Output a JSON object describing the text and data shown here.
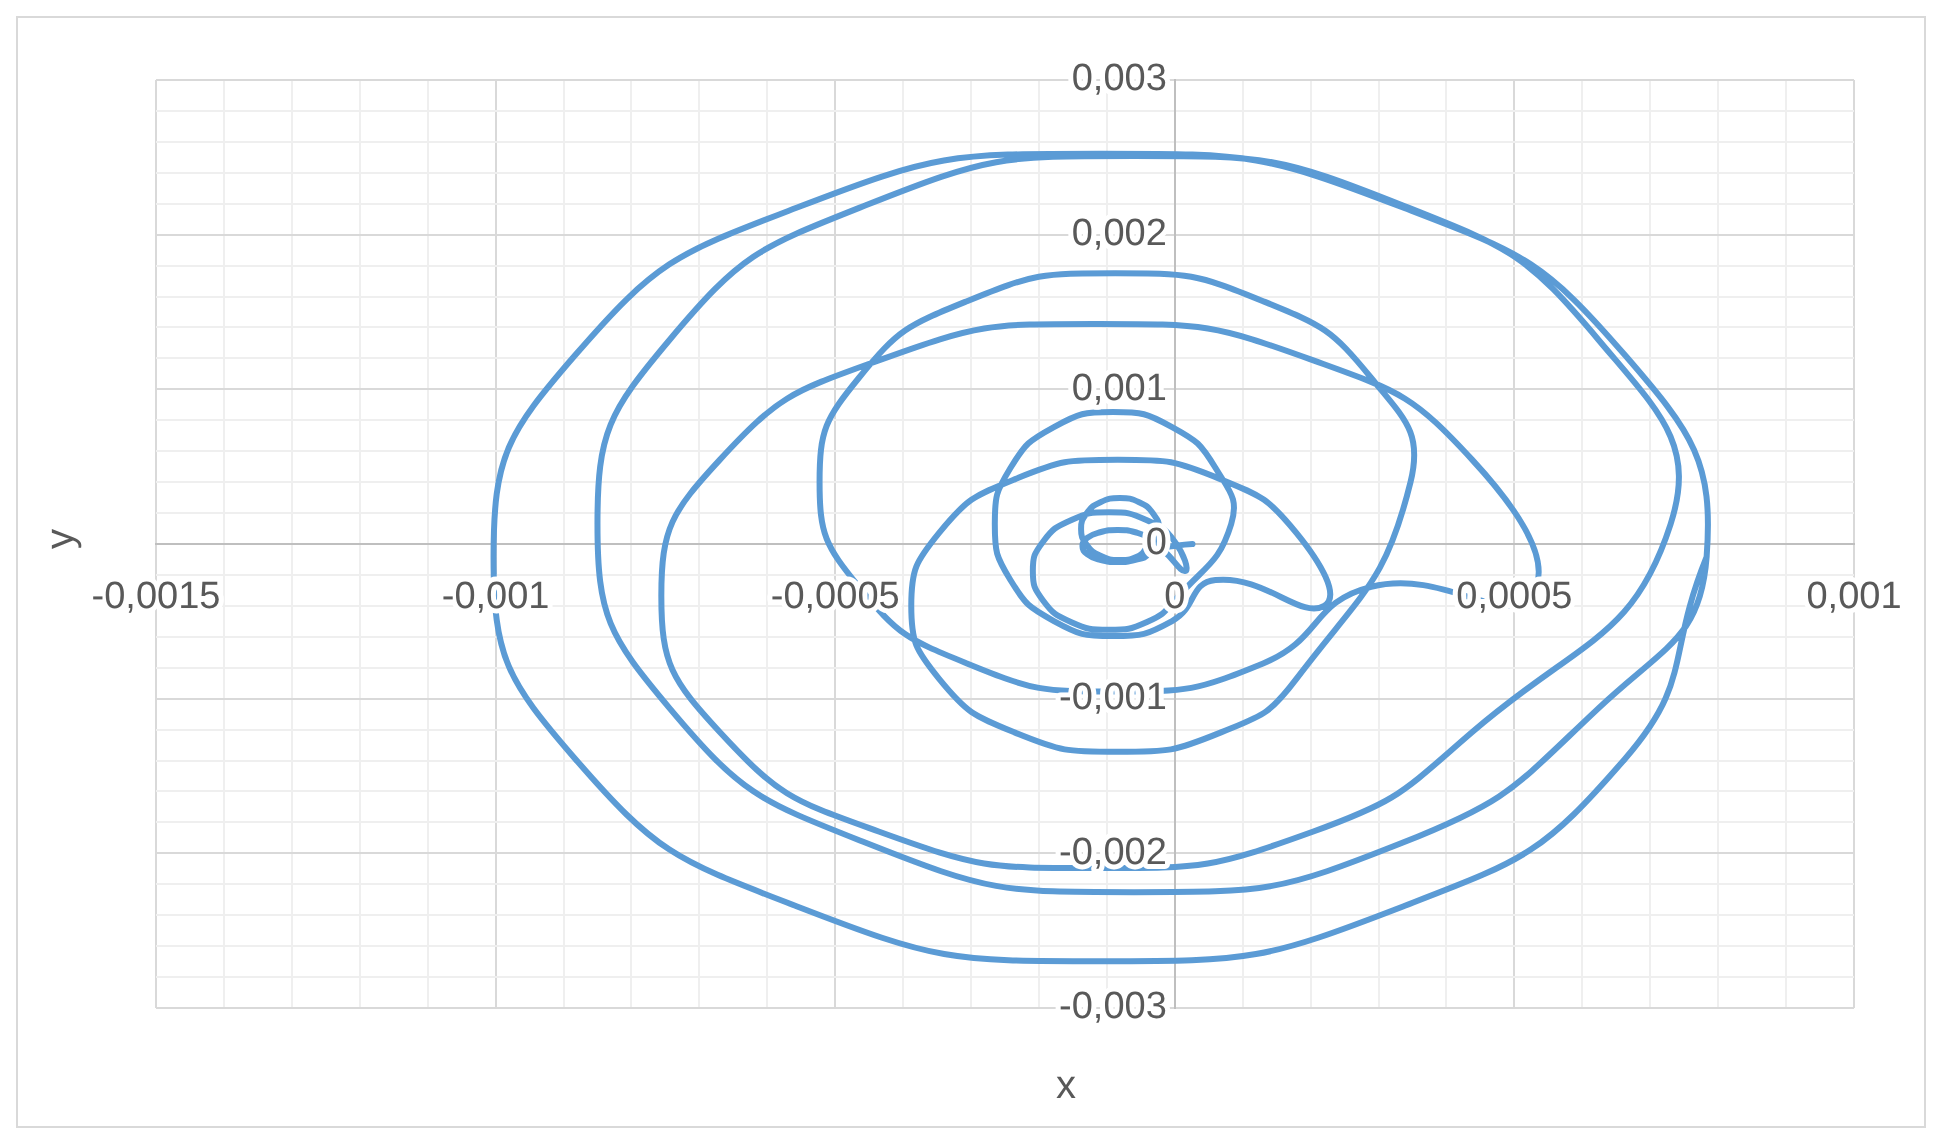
{
  "chart_data": {
    "type": "line",
    "xlabel": "x",
    "ylabel": "y",
    "marker": "none",
    "line_style": "solid",
    "grid": true,
    "legend": false,
    "xlim": [
      -0.0015,
      0.001
    ],
    "ylim": [
      -0.003,
      0.003
    ],
    "xticks": [
      {
        "value": -0.0015,
        "label": "-0,0015"
      },
      {
        "value": -0.0014,
        "label": null
      },
      {
        "value": -0.0013,
        "label": null
      },
      {
        "value": -0.0012,
        "label": null
      },
      {
        "value": -0.0011,
        "label": null
      },
      {
        "value": -0.001,
        "label": "-0,001"
      },
      {
        "value": -0.0009,
        "label": null
      },
      {
        "value": -0.0008,
        "label": null
      },
      {
        "value": -0.0007,
        "label": null
      },
      {
        "value": -0.0006,
        "label": null
      },
      {
        "value": -0.0005,
        "label": "-0,0005"
      },
      {
        "value": -0.0004,
        "label": null
      },
      {
        "value": -0.0003,
        "label": null
      },
      {
        "value": -0.0002,
        "label": null
      },
      {
        "value": -0.0001,
        "label": null
      },
      0,
      {
        "value": 0.0001,
        "label": null
      },
      {
        "value": 0.0002,
        "label": null
      },
      {
        "value": 0.0003,
        "label": null
      },
      {
        "value": 0.0004,
        "label": null
      },
      {
        "value": 0.0005,
        "label": "0,0005"
      },
      {
        "value": 0.0006,
        "label": null
      },
      {
        "value": 0.0007,
        "label": null
      },
      {
        "value": 0.0008,
        "label": null
      },
      {
        "value": 0.0009,
        "label": null
      },
      {
        "value": 0.001,
        "label": "0,001"
      }
    ],
    "yticks": [
      {
        "value": -0.003,
        "label": "-0,003"
      },
      {
        "value": -0.0028,
        "label": null
      },
      {
        "value": -0.0026,
        "label": null
      },
      {
        "value": -0.0024,
        "label": null
      },
      {
        "value": -0.0022,
        "label": null
      },
      {
        "value": -0.002,
        "label": "-0,002"
      },
      {
        "value": -0.0018,
        "label": null
      },
      {
        "value": -0.0016,
        "label": null
      },
      {
        "value": -0.0014,
        "label": null
      },
      {
        "value": -0.0012,
        "label": null
      },
      {
        "value": -0.001,
        "label": "-0,001"
      },
      {
        "value": -0.0008,
        "label": null
      },
      {
        "value": -0.0006,
        "label": null
      },
      {
        "value": -0.0004,
        "label": null
      },
      {
        "value": -0.0002,
        "label": null
      },
      0,
      {
        "value": 0.0002,
        "label": null
      },
      {
        "value": 0.0004,
        "label": null
      },
      {
        "value": 0.0006,
        "label": null
      },
      {
        "value": 0.0008,
        "label": null
      },
      {
        "value": 0.001,
        "label": "0,001"
      },
      {
        "value": 0.0012,
        "label": null
      },
      {
        "value": 0.0014,
        "label": null
      },
      {
        "value": 0.0016,
        "label": null
      },
      {
        "value": 0.0018,
        "label": null
      },
      {
        "value": 0.002,
        "label": "0,002"
      },
      {
        "value": 0.0022,
        "label": null
      },
      {
        "value": 0.0024,
        "label": null
      },
      {
        "value": 0.0026,
        "label": null
      },
      {
        "value": 0.0028,
        "label": null
      },
      {
        "value": 0.003,
        "label": "0,003"
      }
    ],
    "series": [
      {
        "color": "#5b9bd5",
        "x": [
          2.6e-05,
          -3.2e-05,
          -3.9e-05,
          -5.8e-05,
          -8.4e-05,
          -0.00011,
          -0.000129,
          -0.000136,
          -0.000129,
          -0.00011,
          -8.4e-05,
          -5.8e-05,
          -3.9e-05,
          -2.4e-05,
          -3.2e-05,
          -5.25e-05,
          -8.1e-05,
          -0.0001095,
          -0.00013,
          -0.000138,
          -0.00013,
          -0.0001095,
          -8.1e-05,
          -5.25e-05,
          -3.2e-05,
          1.5e-05,
          0,
          -4.1e-05,
          -9.7e-05,
          -0.000153,
          -0.000194,
          -0.000209,
          -0.000194,
          -0.000153,
          -9.7e-05,
          -4.1e-05,
          0,
          8.3e-05,
          6e-05,
          -4e-06,
          -9.1e-05,
          -0.000178,
          -0.000242,
          -0.000265,
          -0.000242,
          -0.000178,
          -9.1e-05,
          -4e-06,
          6e-05,
          0.00022,
          0.000179,
          6.8e-05,
          -8.4e-05,
          -0.000236,
          -0.000347,
          -0.000388,
          -0.000347,
          -0.000236,
          -8.4e-05,
          6.8e-05,
          0.000179,
          0.000347,
          0.000289,
          0.00013,
          -8.8e-05,
          -0.000306,
          -0.000465,
          -0.000523,
          -0.000465,
          -0.000306,
          -8.8e-05,
          0.00013,
          0.000289,
          0.000524,
          0.000438,
          0.000204,
          -0.000116,
          -0.000436,
          -0.00067,
          -0.000756,
          -0.00067,
          -0.000436,
          -0.000116,
          0.000204,
          0.000438,
          0.00073,
          0.000624,
          0.000335,
          -6e-05,
          -0.000455,
          -0.000744,
          -0.00085,
          -0.000744,
          -0.000455,
          -6e-05,
          0.000335,
          0.000624,
          0.000783,
          0.000663,
          0.000337,
          -0.00011,
          -0.000557,
          -0.000883,
          -0.001003,
          -0.000883,
          -0.000557,
          -0.00011,
          0.000337,
          0.000663,
          0.000783
        ],
        "values": [
          0,
          -1.3e-05,
          3.9e-05,
          7.6e-05,
          9e-05,
          7.6e-05,
          3.9e-05,
          -1.3e-05,
          -6.5e-05,
          -0.000102,
          -0.000116,
          -0.000102,
          -6.5e-05,
          9.7e-05,
          0.000197,
          0.00027,
          0.000297,
          0.00027,
          0.000197,
          9.7e-05,
          -3e-06,
          -7.6e-05,
          -0.000103,
          -7.6e-05,
          -3e-06,
          -0.000175,
          1.5e-05,
          0.000154,
          0.000205,
          0.000154,
          1.5e-05,
          -0.000175,
          -0.000365,
          -0.000504,
          -0.000555,
          -0.000504,
          -0.000365,
          0.000129,
          0.000491,
          0.000756,
          0.000853,
          0.000756,
          0.000491,
          0.000129,
          -0.000233,
          -0.000498,
          -0.000595,
          -0.000498,
          -0.000233,
          -0.0004,
          7.2e-05,
          0.000418,
          0.000544,
          0.000418,
          7.2e-05,
          -0.0004,
          -0.000872,
          -0.001218,
          -0.001344,
          -0.001218,
          -0.000872,
          0.000399,
          0.001075,
          0.00157,
          0.001751,
          0.00157,
          0.001075,
          0.000399,
          -0.000277,
          -0.000772,
          -0.000953,
          -0.000772,
          -0.000277,
          -0.000336,
          0.000544,
          0.001187,
          0.001423,
          0.001187,
          0.000544,
          -0.000336,
          -0.001216,
          -0.001859,
          -0.002095,
          -0.001859,
          -0.001216,
          0.000129,
          0.001319,
          0.00219,
          0.002509,
          0.00219,
          0.001319,
          0.000129,
          -0.001061,
          -0.001932,
          -0.002251,
          -0.001932,
          -0.001061,
          -8.4e-05,
          0.00122,
          0.002174,
          0.002523,
          0.002174,
          0.00122,
          -8.4e-05,
          -0.001388,
          -0.002342,
          -0.002697,
          -0.002342,
          -0.001388,
          -8.4e-05
        ]
      }
    ]
  }
}
